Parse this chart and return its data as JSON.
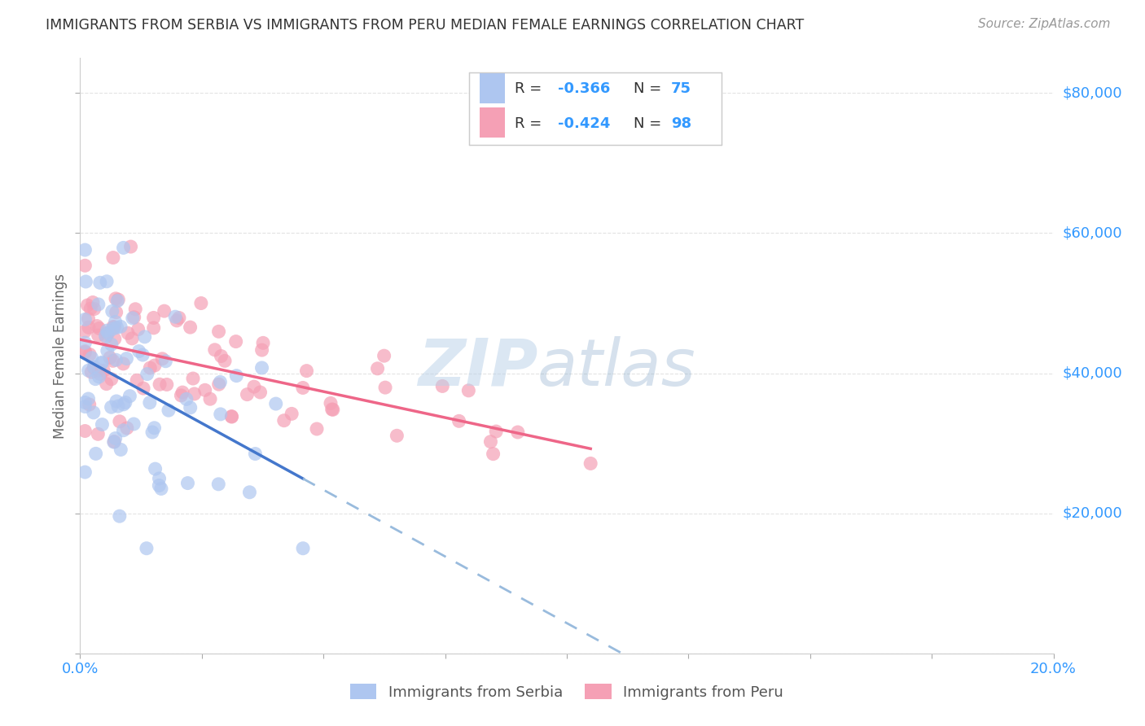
{
  "title": "IMMIGRANTS FROM SERBIA VS IMMIGRANTS FROM PERU MEDIAN FEMALE EARNINGS CORRELATION CHART",
  "source": "Source: ZipAtlas.com",
  "ylabel": "Median Female Earnings",
  "xlim": [
    0.0,
    0.2
  ],
  "ylim": [
    0,
    85000
  ],
  "serbia_color": "#aec6f0",
  "peru_color": "#f5a0b5",
  "serbia_R": -0.366,
  "serbia_N": 75,
  "peru_R": -0.424,
  "peru_N": 98,
  "legend_serbia": "Immigrants from Serbia",
  "legend_peru": "Immigrants from Peru",
  "background_color": "#ffffff",
  "grid_color": "#e0e0e0",
  "title_color": "#333333",
  "axis_label_color": "#3399ff",
  "serbia_line_color": "#4477cc",
  "peru_line_color": "#ee6688",
  "dashed_line_color": "#99bbdd",
  "y_ticks": [
    0,
    20000,
    40000,
    60000,
    80000
  ],
  "y_tick_labels": [
    "",
    "$20,000",
    "$40,000",
    "$60,000",
    "$80,000"
  ]
}
